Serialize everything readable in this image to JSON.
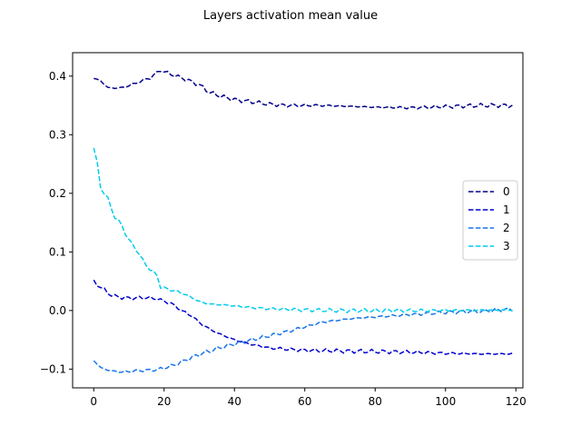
{
  "chart_data": {
    "type": "line",
    "title": "Layers activation mean value",
    "xlabel": "",
    "ylabel": "",
    "xlim": [
      -6,
      122
    ],
    "ylim": [
      -0.132,
      0.44
    ],
    "xticks": [
      0,
      20,
      40,
      60,
      80,
      100,
      120
    ],
    "yticks": [
      -0.1,
      0.0,
      0.1,
      0.2,
      0.3,
      0.4
    ],
    "ytick_labels": [
      "−0.1",
      "0.0",
      "0.1",
      "0.2",
      "0.3",
      "0.4"
    ],
    "grid": false,
    "legend_position": "center-right",
    "line_style": "dashed",
    "series": [
      {
        "name": "0",
        "color": "#00008b",
        "keypoints": [
          [
            0,
            0.396
          ],
          [
            2,
            0.392
          ],
          [
            4,
            0.38
          ],
          [
            8,
            0.38
          ],
          [
            12,
            0.388
          ],
          [
            16,
            0.397
          ],
          [
            19,
            0.41
          ],
          [
            22,
            0.403
          ],
          [
            26,
            0.395
          ],
          [
            30,
            0.385
          ],
          [
            33,
            0.372
          ],
          [
            36,
            0.366
          ],
          [
            40,
            0.36
          ],
          [
            45,
            0.356
          ],
          [
            50,
            0.352
          ],
          [
            55,
            0.35
          ],
          [
            60,
            0.35
          ],
          [
            65,
            0.35
          ],
          [
            70,
            0.349
          ],
          [
            75,
            0.348
          ],
          [
            80,
            0.347
          ],
          [
            90,
            0.346
          ],
          [
            100,
            0.348
          ],
          [
            110,
            0.35
          ],
          [
            119,
            0.35
          ]
        ]
      },
      {
        "name": "1",
        "color": "#0000cd",
        "keypoints": [
          [
            0,
            0.049
          ],
          [
            2,
            0.04
          ],
          [
            4,
            0.03
          ],
          [
            6,
            0.024
          ],
          [
            10,
            0.021
          ],
          [
            15,
            0.022
          ],
          [
            18,
            0.02
          ],
          [
            22,
            0.012
          ],
          [
            25,
            0.0
          ],
          [
            28,
            -0.01
          ],
          [
            31,
            -0.025
          ],
          [
            35,
            -0.038
          ],
          [
            40,
            -0.05
          ],
          [
            45,
            -0.058
          ],
          [
            50,
            -0.064
          ],
          [
            55,
            -0.066
          ],
          [
            60,
            -0.068
          ],
          [
            70,
            -0.069
          ],
          [
            80,
            -0.07
          ],
          [
            90,
            -0.071
          ],
          [
            100,
            -0.073
          ],
          [
            110,
            -0.074
          ],
          [
            119,
            -0.074
          ]
        ]
      },
      {
        "name": "2",
        "color": "#1874e8",
        "keypoints": [
          [
            0,
            -0.085
          ],
          [
            2,
            -0.098
          ],
          [
            5,
            -0.103
          ],
          [
            8,
            -0.105
          ],
          [
            12,
            -0.103
          ],
          [
            18,
            -0.101
          ],
          [
            22,
            -0.095
          ],
          [
            26,
            -0.085
          ],
          [
            30,
            -0.075
          ],
          [
            35,
            -0.065
          ],
          [
            40,
            -0.057
          ],
          [
            45,
            -0.05
          ],
          [
            50,
            -0.043
          ],
          [
            55,
            -0.036
          ],
          [
            60,
            -0.028
          ],
          [
            65,
            -0.02
          ],
          [
            70,
            -0.016
          ],
          [
            75,
            -0.013
          ],
          [
            80,
            -0.011
          ],
          [
            90,
            -0.007
          ],
          [
            100,
            -0.003
          ],
          [
            110,
            -0.001
          ],
          [
            119,
            0.002
          ]
        ]
      },
      {
        "name": "3",
        "color": "#00ccee",
        "keypoints": [
          [
            0,
            0.277
          ],
          [
            1,
            0.25
          ],
          [
            2,
            0.21
          ],
          [
            4,
            0.19
          ],
          [
            6,
            0.16
          ],
          [
            8,
            0.145
          ],
          [
            10,
            0.12
          ],
          [
            12,
            0.105
          ],
          [
            14,
            0.085
          ],
          [
            16,
            0.07
          ],
          [
            18,
            0.06
          ],
          [
            19,
            0.04
          ],
          [
            22,
            0.035
          ],
          [
            25,
            0.03
          ],
          [
            28,
            0.022
          ],
          [
            30,
            0.015
          ],
          [
            33,
            0.011
          ],
          [
            38,
            0.009
          ],
          [
            45,
            0.005
          ],
          [
            50,
            0.003
          ],
          [
            60,
            0.001
          ],
          [
            70,
            0.0
          ],
          [
            80,
            0.0
          ],
          [
            100,
            0.0
          ],
          [
            119,
            0.001
          ]
        ]
      }
    ]
  }
}
